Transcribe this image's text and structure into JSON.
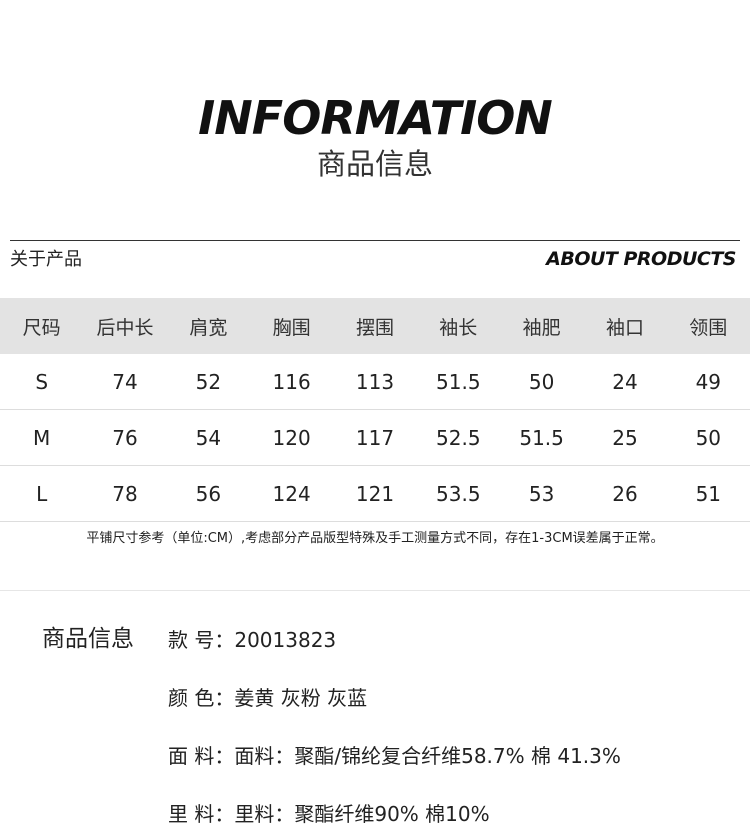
{
  "header": {
    "title_en": "INFORMATION",
    "title_cn": "商品信息"
  },
  "section": {
    "left_label": "关于产品",
    "right_label": "ABOUT PRODUCTS"
  },
  "size_table": {
    "columns": [
      "尺码",
      "后中长",
      "肩宽",
      "胸围",
      "摆围",
      "袖长",
      "袖肥",
      "袖口",
      "领围"
    ],
    "rows": [
      [
        "S",
        "74",
        "52",
        "116",
        "113",
        "51.5",
        "50",
        "24",
        "49"
      ],
      [
        "M",
        "76",
        "54",
        "120",
        "117",
        "52.5",
        "51.5",
        "25",
        "50"
      ],
      [
        "L",
        "78",
        "56",
        "124",
        "121",
        "53.5",
        "53",
        "26",
        "51"
      ]
    ]
  },
  "note": "平铺尺寸参考（单位:CM）,考虑部分产品版型特殊及手工测量方式不同，存在1-3CM误差属于正常。",
  "product_info": {
    "heading": "商品信息",
    "items": [
      {
        "label": "款  号：",
        "value": "20013823"
      },
      {
        "label": "颜  色：",
        "value": "姜黄 灰粉 灰蓝"
      },
      {
        "label": "面  料：",
        "value": "面料：聚酯/锦纶复合纤维58.7% 棉 41.3%"
      },
      {
        "label": "里  料：",
        "value": "里料：聚酯纤维90% 棉10%"
      }
    ]
  }
}
